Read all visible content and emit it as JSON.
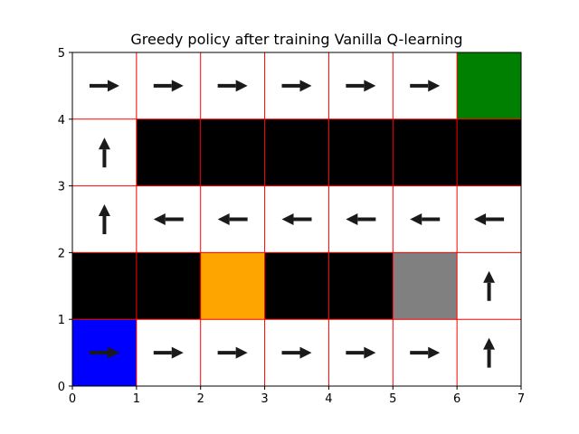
{
  "chart_data": {
    "type": "heatmap",
    "title": "Greedy policy after training Vanilla Q-learning",
    "xlabel": "",
    "ylabel": "",
    "xlim": [
      0,
      7
    ],
    "ylim": [
      0,
      5
    ],
    "xticks": [
      "0",
      "1",
      "2",
      "3",
      "4",
      "5",
      "6",
      "7"
    ],
    "yticks": [
      "0",
      "1",
      "2",
      "3",
      "4",
      "5"
    ],
    "grid": true,
    "grid_color": "#ff0000",
    "colors": {
      "empty": "#ffffff",
      "wall": "#000000",
      "goal": "#008000",
      "start": "#0000ff",
      "orange": "#ffa500",
      "gray": "#808080",
      "arrow": "#1a1a1a"
    },
    "cells": [
      [
        "start",
        "empty",
        "empty",
        "empty",
        "empty",
        "empty",
        "empty"
      ],
      [
        "wall",
        "wall",
        "orange",
        "wall",
        "wall",
        "gray",
        "empty"
      ],
      [
        "empty",
        "empty",
        "empty",
        "empty",
        "empty",
        "empty",
        "empty"
      ],
      [
        "empty",
        "wall",
        "wall",
        "wall",
        "wall",
        "wall",
        "wall"
      ],
      [
        "empty",
        "empty",
        "empty",
        "empty",
        "empty",
        "empty",
        "goal"
      ]
    ],
    "policy": [
      [
        "right",
        "right",
        "right",
        "right",
        "right",
        "right",
        "up"
      ],
      [
        "",
        "",
        "",
        "",
        "",
        "",
        "up"
      ],
      [
        "up",
        "left",
        "left",
        "left",
        "left",
        "left",
        "left"
      ],
      [
        "up",
        "",
        "",
        "",
        "",
        "",
        ""
      ],
      [
        "right",
        "right",
        "right",
        "right",
        "right",
        "right",
        ""
      ]
    ]
  }
}
